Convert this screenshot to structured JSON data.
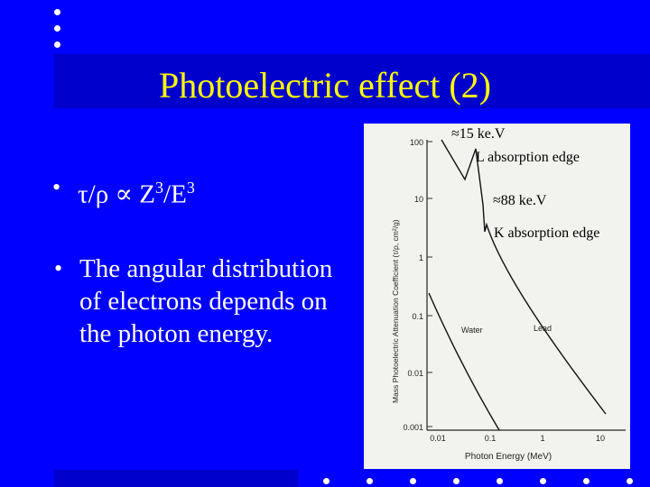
{
  "slide": {
    "title": "Photoelectric effect (2)",
    "bullet_1": {
      "symbol": "•",
      "prefix": "τ/ρ ∝ Z",
      "sup1": "3",
      "mid": "/E",
      "sup2": "3"
    },
    "bullet_2": {
      "symbol": "•",
      "line1": "The angular distribution",
      "line2": "of electrons depends on",
      "line3": "the photon energy."
    },
    "annotations": {
      "l_edge_energy": "≈15 ke.V",
      "l_edge_label": "L absorption edge",
      "k_edge_energy": "≈88 ke.V",
      "k_edge_label": "K absorption edge"
    }
  },
  "figure": {
    "ylabel": "Mass Photoelectric Attenuation Coefficient (τ/ρ, cm²/g)",
    "xlabel": "Photon Energy (MeV)",
    "ytick_labels": [
      "100",
      "10",
      "1",
      "0.1",
      "0.01",
      "0.001"
    ],
    "xtick_labels": [
      "0.01",
      "0.1",
      "1",
      "10"
    ],
    "curve_labels": {
      "water": "Water",
      "lead": "Lead"
    }
  },
  "colors": {
    "background": "#0000ff",
    "title": "#ffff00",
    "text": "#ffffff",
    "band": "#0000cc"
  }
}
